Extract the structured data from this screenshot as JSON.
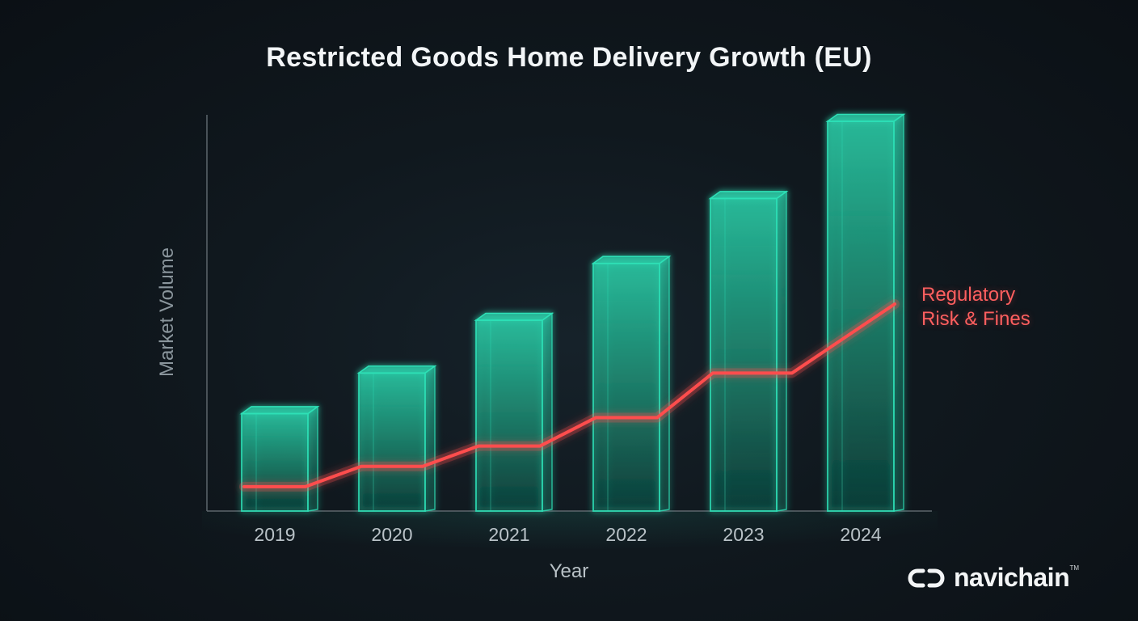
{
  "chart_data": {
    "type": "bar",
    "title": "Restricted Goods Home Delivery Growth (EU)",
    "xlabel": "Year",
    "ylabel": "Market Volume",
    "categories": [
      "2019",
      "2020",
      "2021",
      "2022",
      "2023",
      "2024"
    ],
    "series": [
      {
        "values": [
          24,
          34,
          47,
          61,
          77,
          96
        ]
      },
      {
        "name": "Regulatory Risk & Fines",
        "type": "line",
        "values": [
          6,
          11,
          16,
          23,
          34,
          51
        ]
      }
    ],
    "ylim": [
      0,
      100
    ],
    "y_ticks_shown": false,
    "grid": false,
    "colors": {
      "bar": "#2de0b6",
      "line": "#ff4d4d",
      "axis": "#5d666c"
    }
  },
  "annotation": {
    "line1": "Regulatory",
    "line2": "Risk & Fines"
  },
  "logo": {
    "text": "navichain",
    "tm": "TM",
    "icon": "link-icon"
  }
}
